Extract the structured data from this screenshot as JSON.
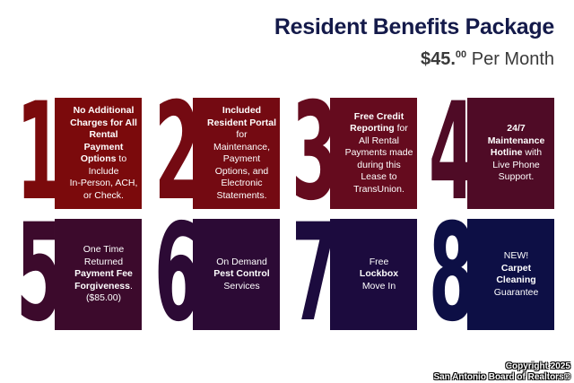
{
  "header": {
    "title": "Resident Benefits Package",
    "price_dollars": "$45.",
    "price_cents": "00",
    "price_suffix": " Per Month"
  },
  "cards": [
    {
      "number": "1",
      "color": "#7b0a0c",
      "lines": [
        [
          {
            "t": "No Additional",
            "b": true
          }
        ],
        [
          {
            "t": "Charges for All",
            "b": true
          }
        ],
        [
          {
            "t": "Rental",
            "b": true
          }
        ],
        [
          {
            "t": "Payment",
            "b": true
          }
        ],
        [
          {
            "t": "Options",
            "b": true
          },
          {
            "t": " to",
            "b": false
          }
        ],
        [
          {
            "t": "Include",
            "b": false
          }
        ],
        [
          {
            "t": "In-Person, ACH,",
            "b": false
          }
        ],
        [
          {
            "t": "or Check.",
            "b": false
          }
        ]
      ]
    },
    {
      "number": "2",
      "color": "#740a12",
      "lines": [
        [
          {
            "t": "Included",
            "b": true
          }
        ],
        [
          {
            "t": "Resident Portal",
            "b": true
          }
        ],
        [
          {
            "t": "for",
            "b": false
          }
        ],
        [
          {
            "t": "Maintenance,",
            "b": false
          }
        ],
        [
          {
            "t": "Payment",
            "b": false
          }
        ],
        [
          {
            "t": "Options, and",
            "b": false
          }
        ],
        [
          {
            "t": "Electronic",
            "b": false
          }
        ],
        [
          {
            "t": "Statements.",
            "b": false
          }
        ]
      ]
    },
    {
      "number": "3",
      "color": "#650b1e",
      "lines": [
        [
          {
            "t": "Free Credit",
            "b": true
          }
        ],
        [
          {
            "t": "Reporting",
            "b": true
          },
          {
            "t": " for",
            "b": false
          }
        ],
        [
          {
            "t": "All Rental",
            "b": false
          }
        ],
        [
          {
            "t": "Payments made",
            "b": false
          }
        ],
        [
          {
            "t": "during this",
            "b": false
          }
        ],
        [
          {
            "t": "Lease to",
            "b": false
          }
        ],
        [
          {
            "t": "TransUnion.",
            "b": false
          }
        ]
      ]
    },
    {
      "number": "4",
      "color": "#4f0b26",
      "lines": [
        [
          {
            "t": "24/7",
            "b": true
          }
        ],
        [
          {
            "t": "Maintenance",
            "b": true
          }
        ],
        [
          {
            "t": "Hotline",
            "b": true
          },
          {
            "t": " with",
            "b": false
          }
        ],
        [
          {
            "t": "Live Phone",
            "b": false
          }
        ],
        [
          {
            "t": "Support.",
            "b": false
          }
        ]
      ]
    },
    {
      "number": "5",
      "color": "#3c0a2c",
      "lines": [
        [
          {
            "t": "One Time",
            "b": false
          }
        ],
        [
          {
            "t": "Returned",
            "b": false
          }
        ],
        [
          {
            "t": "Payment Fee",
            "b": true
          }
        ],
        [
          {
            "t": "Forgiveness",
            "b": true
          },
          {
            "t": ".",
            "b": false
          }
        ],
        [
          {
            "t": "($85.00)",
            "b": false
          }
        ]
      ]
    },
    {
      "number": "6",
      "color": "#2c0a35",
      "lines": [
        [
          {
            "t": "On Demand",
            "b": false
          }
        ],
        [
          {
            "t": "Pest Control",
            "b": true
          }
        ],
        [
          {
            "t": "Services",
            "b": false
          }
        ]
      ]
    },
    {
      "number": "7",
      "color": "#1c0b3e",
      "lines": [
        [
          {
            "t": "Free",
            "b": false
          }
        ],
        [
          {
            "t": "Lockbox",
            "b": true
          }
        ],
        [
          {
            "t": "Move In",
            "b": false
          }
        ]
      ]
    },
    {
      "number": "8",
      "color": "#0d0f45",
      "lines": [
        [
          {
            "t": "NEW!",
            "b": false
          }
        ],
        [
          {
            "t": "Carpet",
            "b": true
          }
        ],
        [
          {
            "t": "Cleaning",
            "b": true
          }
        ],
        [
          {
            "t": "Guarantee",
            "b": false
          }
        ]
      ]
    }
  ],
  "watermark": {
    "line1": "Copyright 2025",
    "line2": "San Antonio Board of Realtors®"
  }
}
